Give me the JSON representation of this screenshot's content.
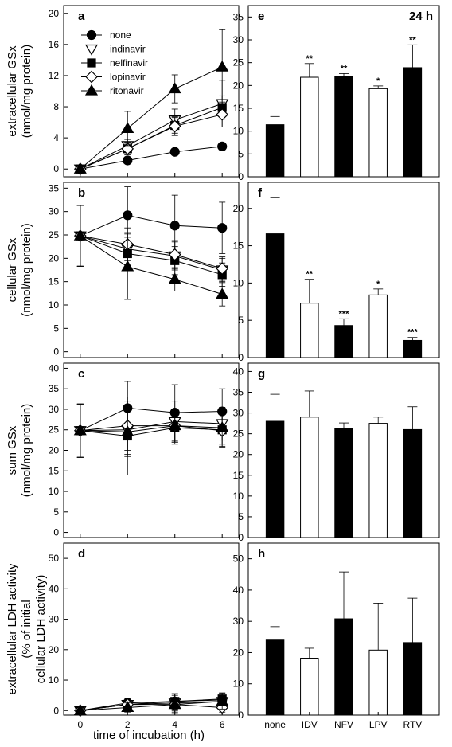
{
  "figure": {
    "x_axis_title": "time of incubation (h)",
    "time_label": "24 h"
  },
  "series_styles": [
    {
      "name": "none",
      "marker": "circle",
      "fill": "#000000"
    },
    {
      "name": "indinavir",
      "marker": "triangle-down",
      "fill": "#ffffff"
    },
    {
      "name": "nelfinavir",
      "marker": "square",
      "fill": "#000000"
    },
    {
      "name": "lopinavir",
      "marker": "diamond",
      "fill": "#ffffff"
    },
    {
      "name": "ritonavir",
      "marker": "triangle-up",
      "fill": "#000000"
    }
  ],
  "bar_fills": [
    "#000000",
    "#ffffff",
    "#000000",
    "#ffffff",
    "#000000"
  ],
  "chart_data": [
    {
      "panel": "a",
      "type": "line",
      "ylabel": [
        "extracellular GSx",
        "(nmol/mg protein)"
      ],
      "x": [
        0,
        2,
        4,
        6
      ],
      "xticks": [
        "0",
        "2",
        "4",
        "6"
      ],
      "ylim": [
        -1,
        21
      ],
      "yticks": [
        0,
        4,
        8,
        12,
        16,
        20
      ],
      "legend": true,
      "legend_position": "top-left",
      "series": [
        {
          "name": "none",
          "values": [
            0,
            1.1,
            2.2,
            2.9
          ],
          "errors": [
            0.2,
            0.2,
            0.3,
            0.3
          ]
        },
        {
          "name": "indinavir",
          "values": [
            0,
            3.0,
            6.3,
            8.4
          ],
          "errors": [
            0.3,
            0.8,
            1.4,
            3.0
          ]
        },
        {
          "name": "nelfinavir",
          "values": [
            0,
            2.6,
            5.6,
            7.9
          ],
          "errors": [
            0.3,
            0.8,
            1.0,
            1.5
          ]
        },
        {
          "name": "lopinavir",
          "values": [
            0,
            2.6,
            5.5,
            7.0
          ],
          "errors": [
            0.3,
            0.7,
            1.2,
            1.6
          ]
        },
        {
          "name": "ritonavir",
          "values": [
            0,
            5.2,
            10.3,
            13.1
          ],
          "errors": [
            0.3,
            2.2,
            1.8,
            4.8
          ]
        }
      ]
    },
    {
      "panel": "b",
      "type": "line",
      "ylabel": [
        "cellular GSx",
        "(nmol/mg protein)"
      ],
      "x": [
        0,
        2,
        4,
        6
      ],
      "xticks": [
        "0",
        "2",
        "4",
        "6"
      ],
      "ylim": [
        -1.25,
        36.25
      ],
      "yticks": [
        0,
        5,
        10,
        15,
        20,
        25,
        30,
        35
      ],
      "series": [
        {
          "name": "none",
          "values": [
            24.8,
            29.2,
            27.0,
            26.5
          ],
          "errors": [
            6.5,
            6.1,
            6.5,
            5.5
          ]
        },
        {
          "name": "indinavir",
          "values": [
            24.8,
            22.0,
            20.5,
            17.5
          ],
          "errors": [
            6.5,
            3.5,
            3.0,
            2.5
          ]
        },
        {
          "name": "nelfinavir",
          "values": [
            24.8,
            21.0,
            19.5,
            16.5
          ],
          "errors": [
            6.5,
            3.5,
            3.0,
            2.5
          ]
        },
        {
          "name": "lopinavir",
          "values": [
            24.8,
            23.0,
            20.8,
            17.8
          ],
          "errors": [
            6.5,
            3.5,
            3.0,
            2.5
          ]
        },
        {
          "name": "ritonavir",
          "values": [
            24.8,
            18.2,
            15.5,
            12.3
          ],
          "errors": [
            6.5,
            7.0,
            2.5,
            2.5
          ]
        }
      ]
    },
    {
      "panel": "c",
      "type": "line",
      "ylabel": [
        "sum GSx",
        "(nmol/mg protein)"
      ],
      "x": [
        0,
        2,
        4,
        6
      ],
      "xticks": [
        "0",
        "2",
        "4",
        "6"
      ],
      "ylim": [
        -1.25,
        41.25
      ],
      "yticks": [
        0,
        5,
        10,
        15,
        20,
        25,
        30,
        35,
        40
      ],
      "series": [
        {
          "name": "none",
          "values": [
            24.8,
            30.3,
            29.2,
            29.5
          ],
          "errors": [
            6.5,
            6.5,
            6.8,
            5.5
          ]
        },
        {
          "name": "indinavir",
          "values": [
            24.8,
            25.0,
            27.0,
            26.5
          ],
          "errors": [
            6.5,
            6.0,
            5.0,
            4.0
          ]
        },
        {
          "name": "nelfinavir",
          "values": [
            24.8,
            23.5,
            25.5,
            25.0
          ],
          "errors": [
            6.5,
            9.5,
            4.0,
            4.0
          ]
        },
        {
          "name": "lopinavir",
          "values": [
            24.8,
            26.0,
            26.0,
            24.8
          ],
          "errors": [
            6.5,
            6.0,
            4.0,
            4.0
          ]
        },
        {
          "name": "ritonavir",
          "values": [
            24.8,
            24.5,
            26.0,
            25.5
          ],
          "errors": [
            6.5,
            6.0,
            4.0,
            4.0
          ]
        }
      ]
    },
    {
      "panel": "d",
      "type": "line",
      "ylabel": [
        "extracellular LDH activity",
        "(% of initial",
        "cellular LDH activity)"
      ],
      "x": [
        0,
        2,
        4,
        6
      ],
      "xticks": [
        "0",
        "2",
        "4",
        "6"
      ],
      "ylim": [
        -1.5,
        55
      ],
      "yticks": [
        0,
        10,
        20,
        30,
        40,
        50
      ],
      "series": [
        {
          "name": "none",
          "values": [
            0,
            2.5,
            3.0,
            3.5
          ],
          "errors": [
            0.5,
            1.5,
            2.5,
            2.0
          ]
        },
        {
          "name": "indinavir",
          "values": [
            0,
            2.0,
            2.5,
            3.0
          ],
          "errors": [
            0.5,
            2.0,
            3.0,
            2.5
          ]
        },
        {
          "name": "nelfinavir",
          "values": [
            0,
            2.0,
            3.0,
            3.8
          ],
          "errors": [
            0.5,
            1.5,
            2.5,
            2.0
          ]
        },
        {
          "name": "lopinavir",
          "values": [
            0,
            2.0,
            2.0,
            1.0
          ],
          "errors": [
            0.5,
            2.0,
            2.0,
            1.5
          ]
        },
        {
          "name": "ritonavir",
          "values": [
            0,
            1.0,
            2.0,
            3.0
          ],
          "errors": [
            0.5,
            1.5,
            3.0,
            2.5
          ]
        }
      ]
    },
    {
      "panel": "e",
      "type": "bar",
      "categories": [
        "none",
        "IDV",
        "NFV",
        "LPV",
        "RTV"
      ],
      "values": [
        11.4,
        21.8,
        22.0,
        19.3,
        23.9
      ],
      "errors": [
        1.8,
        3.0,
        0.6,
        0.6,
        5.0
      ],
      "significance": [
        "",
        "**",
        "**",
        "*",
        "**"
      ],
      "ylim": [
        0,
        37.5
      ],
      "yticks": [
        0,
        5,
        10,
        15,
        20,
        25,
        30,
        35
      ]
    },
    {
      "panel": "f",
      "type": "bar",
      "categories": [
        "none",
        "IDV",
        "NFV",
        "LPV",
        "RTV"
      ],
      "values": [
        16.6,
        7.3,
        4.3,
        8.4,
        2.3
      ],
      "errors": [
        4.9,
        3.2,
        0.9,
        0.8,
        0.4
      ],
      "significance": [
        "",
        "**",
        "***",
        "*",
        "***"
      ],
      "ylim": [
        0,
        23.5
      ],
      "yticks": [
        0,
        5,
        10,
        15,
        20
      ]
    },
    {
      "panel": "g",
      "type": "bar",
      "categories": [
        "none",
        "IDV",
        "NFV",
        "LPV",
        "RTV"
      ],
      "values": [
        28.0,
        29.0,
        26.3,
        27.5,
        26.0
      ],
      "errors": [
        6.5,
        6.3,
        1.3,
        1.5,
        5.5
      ],
      "significance": [
        "",
        "",
        "",
        "",
        ""
      ],
      "ylim": [
        0,
        42
      ],
      "yticks": [
        0,
        5,
        10,
        15,
        20,
        25,
        30,
        35,
        40
      ]
    },
    {
      "panel": "h",
      "type": "bar",
      "categories": [
        "none",
        "IDV",
        "NFV",
        "LPV",
        "RTV"
      ],
      "values": [
        24.0,
        18.2,
        30.8,
        20.8,
        23.2
      ],
      "errors": [
        4.3,
        3.2,
        15.0,
        15.0,
        14.2
      ],
      "significance": [
        "",
        "",
        "",
        "",
        ""
      ],
      "ylim": [
        0,
        55
      ],
      "yticks": [
        0,
        10,
        20,
        30,
        40,
        50
      ]
    }
  ]
}
